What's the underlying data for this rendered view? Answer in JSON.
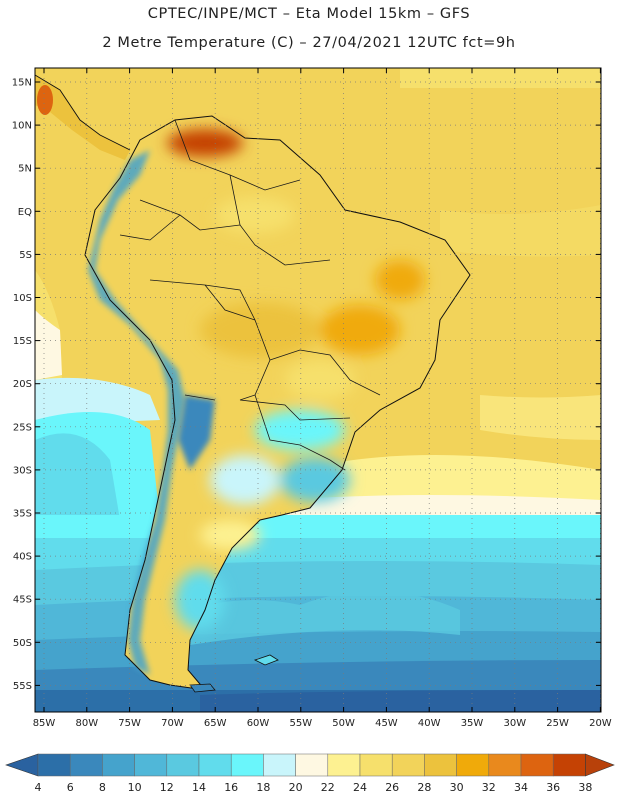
{
  "header": {
    "title_line1": "CPTEC/INPE/MCT –  Eta Model 15km – GFS",
    "title_line2": "2 Metre Temperature (C) – 27/04/2021 12UTC fct=9h"
  },
  "map": {
    "lat_labels": [
      "15N",
      "10N",
      "5N",
      "EQ",
      "5S",
      "10S",
      "15S",
      "20S",
      "25S",
      "30S",
      "35S",
      "40S",
      "45S",
      "50S",
      "55S"
    ],
    "lon_labels": [
      "85W",
      "80W",
      "75W",
      "70W",
      "65W",
      "60W",
      "55W",
      "50W",
      "45W",
      "40W",
      "35W",
      "30W",
      "25W",
      "20W"
    ]
  },
  "colorbar": {
    "labels": [
      "4",
      "6",
      "8",
      "10",
      "12",
      "14",
      "16",
      "18",
      "20",
      "22",
      "24",
      "26",
      "28",
      "30",
      "32",
      "34",
      "36",
      "38"
    ],
    "colors": [
      "#2c6fa8",
      "#3a88bc",
      "#45a3cc",
      "#50b7d8",
      "#5ac9e0",
      "#61dcec",
      "#6af6fb",
      "#c9f5fb",
      "#fef8e2",
      "#fdf191",
      "#f6e06c",
      "#f2d35a",
      "#ecc23d",
      "#f0aa0a",
      "#e9891d",
      "#dd6410",
      "#c54204"
    ],
    "under_color": "#2a62a0",
    "over_color": "#b8410a"
  }
}
